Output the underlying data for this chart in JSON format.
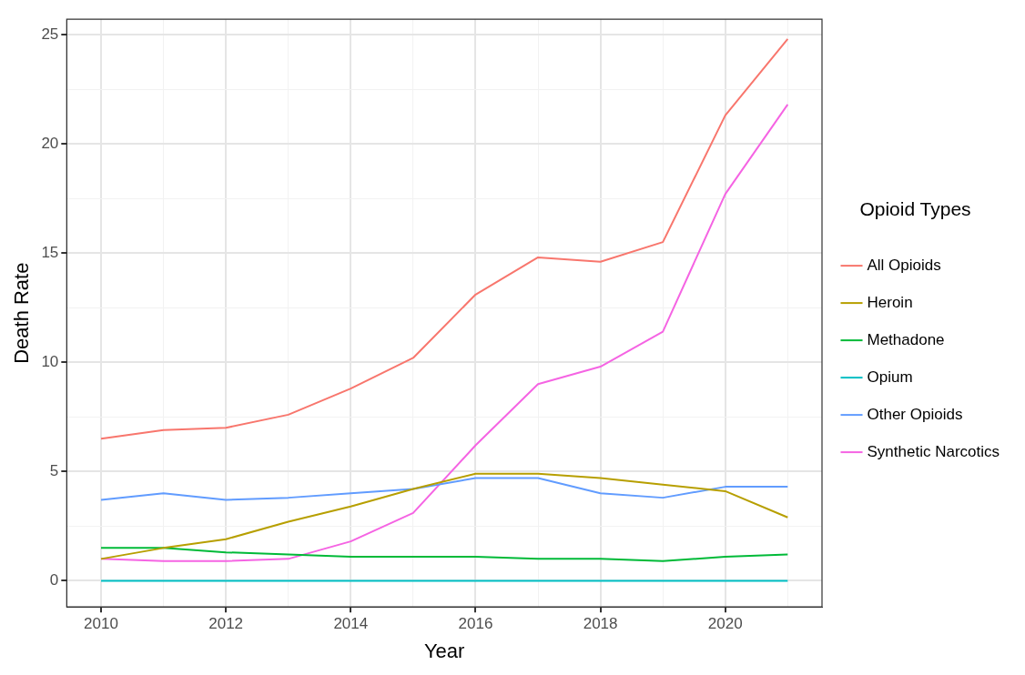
{
  "chart_data": {
    "type": "line",
    "xlabel": "Year",
    "ylabel": "Death Rate",
    "legend_title": "Opioid Types",
    "legend": "right",
    "grid": true,
    "marker": "none",
    "line_style": "solid",
    "x": [
      2010,
      2011,
      2012,
      2013,
      2014,
      2015,
      2016,
      2017,
      2018,
      2019,
      2020,
      2021
    ],
    "xlim": [
      2009.45,
      2021.55
    ],
    "xticks": [
      2010,
      {
        "value": 2011,
        "label": null
      },
      2012,
      {
        "value": 2013,
        "label": null
      },
      2014,
      {
        "value": 2015,
        "label": null
      },
      2016,
      {
        "value": 2017,
        "label": null
      },
      2018,
      {
        "value": 2019,
        "label": null
      },
      2020,
      {
        "value": 2021,
        "label": null
      }
    ],
    "ylim": [
      -1.2,
      25.7
    ],
    "yticks": [
      0,
      {
        "value": 2.5,
        "label": null
      },
      5,
      {
        "value": 7.5,
        "label": null
      },
      10,
      {
        "value": 12.5,
        "label": null
      },
      15,
      {
        "value": 17.5,
        "label": null
      },
      20,
      {
        "value": 22.5,
        "label": null
      },
      25
    ],
    "series": [
      {
        "name": "All Opioids",
        "color": "#f8766d",
        "values": [
          6.5,
          6.9,
          7.0,
          7.6,
          8.8,
          10.2,
          13.1,
          14.8,
          14.6,
          15.5,
          21.3,
          24.8
        ]
      },
      {
        "name": "Heroin",
        "color": "#b79f00",
        "values": [
          1.0,
          1.5,
          1.9,
          2.7,
          3.4,
          4.2,
          4.9,
          4.9,
          4.7,
          4.4,
          4.1,
          2.9
        ]
      },
      {
        "name": "Methadone",
        "color": "#00ba38",
        "values": [
          1.5,
          1.5,
          1.3,
          1.2,
          1.1,
          1.1,
          1.1,
          1.0,
          1.0,
          0.9,
          1.1,
          1.2
        ]
      },
      {
        "name": "Opium",
        "color": "#00bfc4",
        "values": [
          0,
          0,
          0,
          0,
          0,
          0,
          0,
          0,
          0,
          0,
          0,
          0
        ]
      },
      {
        "name": "Other Opioids",
        "color": "#619cff",
        "values": [
          3.7,
          4.0,
          3.7,
          3.8,
          4.0,
          4.2,
          4.7,
          4.7,
          4.0,
          3.8,
          4.3,
          4.3
        ]
      },
      {
        "name": "Synthetic Narcotics",
        "color": "#f564e3",
        "values": [
          1.0,
          0.9,
          0.9,
          1.0,
          1.8,
          3.1,
          6.2,
          9.0,
          9.8,
          11.4,
          17.7,
          21.8
        ]
      }
    ]
  }
}
